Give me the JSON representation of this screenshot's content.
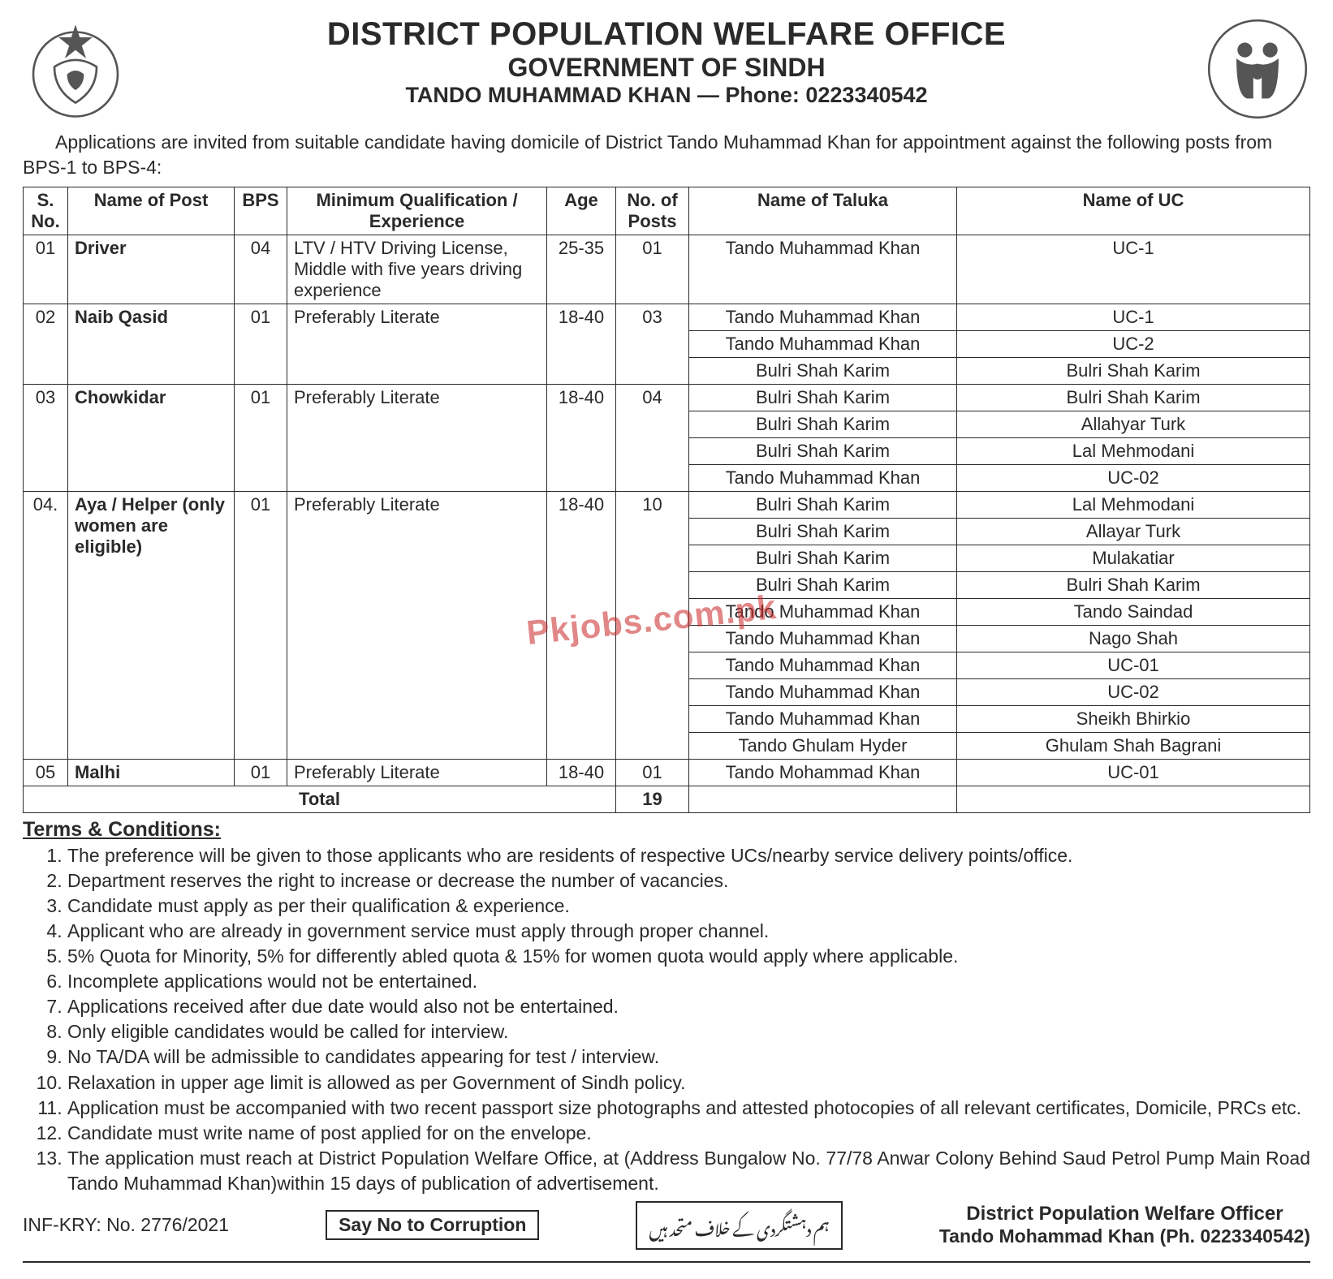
{
  "colors": {
    "text": "#2a2a2a",
    "border": "#2a2a2a",
    "background": "#ffffff",
    "watermark": "rgba(201,36,36,0.55)"
  },
  "header": {
    "title_main": "DISTRICT POPULATION WELFARE OFFICE",
    "title_sub": "GOVERNMENT OF SINDH",
    "title_contact": "TANDO MUHAMMAD KHAN — Phone: 0223340542"
  },
  "intro": "Applications are invited from suitable candidate having domicile of District Tando Muhammad Khan for appointment against the following posts from BPS-1 to BPS-4:",
  "watermark": "Pkjobs.com.pk",
  "table": {
    "headers": {
      "sno": "S. No.",
      "post": "Name of Post",
      "bps": "BPS",
      "qual": "Minimum Qualification / Experience",
      "age": "Age",
      "nop": "No. of Posts",
      "taluka": "Name of Taluka",
      "uc": "Name of UC"
    },
    "posts": [
      {
        "sno": "01",
        "name": "Driver",
        "bps": "04",
        "qual": "LTV / HTV Driving License, Middle with five years driving experience",
        "age": "25-35",
        "nop": "01",
        "rows": [
          {
            "taluka": "Tando Muhammad Khan",
            "uc": "UC-1"
          }
        ]
      },
      {
        "sno": "02",
        "name": "Naib Qasid",
        "bps": "01",
        "qual": "Preferably Literate",
        "age": "18-40",
        "nop": "03",
        "rows": [
          {
            "taluka": "Tando Muhammad Khan",
            "uc": "UC-1"
          },
          {
            "taluka": "Tando Muhammad Khan",
            "uc": "UC-2"
          },
          {
            "taluka": "Bulri Shah  Karim",
            "uc": "Bulri Shah  Karim"
          }
        ]
      },
      {
        "sno": "03",
        "name": "Chowkidar",
        "bps": "01",
        "qual": "Preferably Literate",
        "age": "18-40",
        "nop": "04",
        "rows": [
          {
            "taluka": "Bulri Shah  Karim",
            "uc": "Bulri Shah  Karim"
          },
          {
            "taluka": "Bulri Shah  Karim",
            "uc": "Allahyar Turk"
          },
          {
            "taluka": "Bulri Shah  Karim",
            "uc": "Lal Mehmodani"
          },
          {
            "taluka": "Tando Muhammad Khan",
            "uc": "UC-02"
          }
        ]
      },
      {
        "sno": "04.",
        "name": "Aya / Helper (only women are eligible)",
        "bps": "01",
        "qual": "Preferably Literate",
        "age": "18-40",
        "nop": "10",
        "rows": [
          {
            "taluka": "Bulri Shah  Karim",
            "uc": "Lal Mehmodani"
          },
          {
            "taluka": "Bulri Shah  Karim",
            "uc": "Allayar Turk"
          },
          {
            "taluka": "Bulri Shah  Karim",
            "uc": "Mulakatiar"
          },
          {
            "taluka": "Bulri Shah  Karim",
            "uc": "Bulri Shah  Karim"
          },
          {
            "taluka": "Tando Muhammad Khan",
            "uc": "Tando Saindad"
          },
          {
            "taluka": "Tando Muhammad Khan",
            "uc": "Nago Shah"
          },
          {
            "taluka": "Tando Muhammad Khan",
            "uc": "UC-01"
          },
          {
            "taluka": "Tando Muhammad Khan",
            "uc": "UC-02"
          },
          {
            "taluka": "Tando Muhammad Khan",
            "uc": "Sheikh Bhirkio"
          },
          {
            "taluka": "Tando Ghulam Hyder",
            "uc": "Ghulam Shah Bagrani"
          }
        ]
      },
      {
        "sno": "05",
        "name": "Malhi",
        "bps": "01",
        "qual": "Preferably Literate",
        "age": "18-40",
        "nop": "01",
        "rows": [
          {
            "taluka": "Tando Mohammad Khan",
            "uc": "UC-01"
          }
        ]
      }
    ],
    "total_label": "Total",
    "total_value": "19"
  },
  "terms": {
    "heading": "Terms & Conditions:",
    "items": [
      "The preference will be given to those applicants who are residents of respective UCs/nearby service delivery points/office.",
      "Department reserves the right to increase or decrease the number of vacancies.",
      "Candidate must apply as per their qualification & experience.",
      "Applicant who are already in government service must apply through proper channel.",
      "5% Quota for Minority, 5% for differently abled quota & 15% for women quota would apply where applicable.",
      "Incomplete applications would not be entertained.",
      "Applications received after due date would also not be entertained.",
      "Only eligible candidates would be called for interview.",
      "No TA/DA will be admissible to candidates appearing for test / interview.",
      "Relaxation in upper age limit is allowed as per Government of Sindh policy.",
      "Application must be accompanied with two recent passport size photographs and attested photocopies of all relevant certificates, Domicile, PRCs etc.",
      "Candidate must write name of post applied for on the envelope.",
      "The application must reach at District Population Welfare Office, at (Address Bungalow No. 77/78 Anwar Colony Behind Saud Petrol Pump Main Road Tando Muhammad Khan)within 15 days of publication of advertisement."
    ]
  },
  "footer": {
    "ref": "INF-KRY: No. 2776/2021",
    "box_en": "Say No to Corruption",
    "box_ur": "ہم دہشتگردی کے خلاف متحد ہیں",
    "officer_title": "District Population Welfare Officer",
    "officer_sub": "Tando Mohammad Khan (Ph. 0223340542)"
  }
}
